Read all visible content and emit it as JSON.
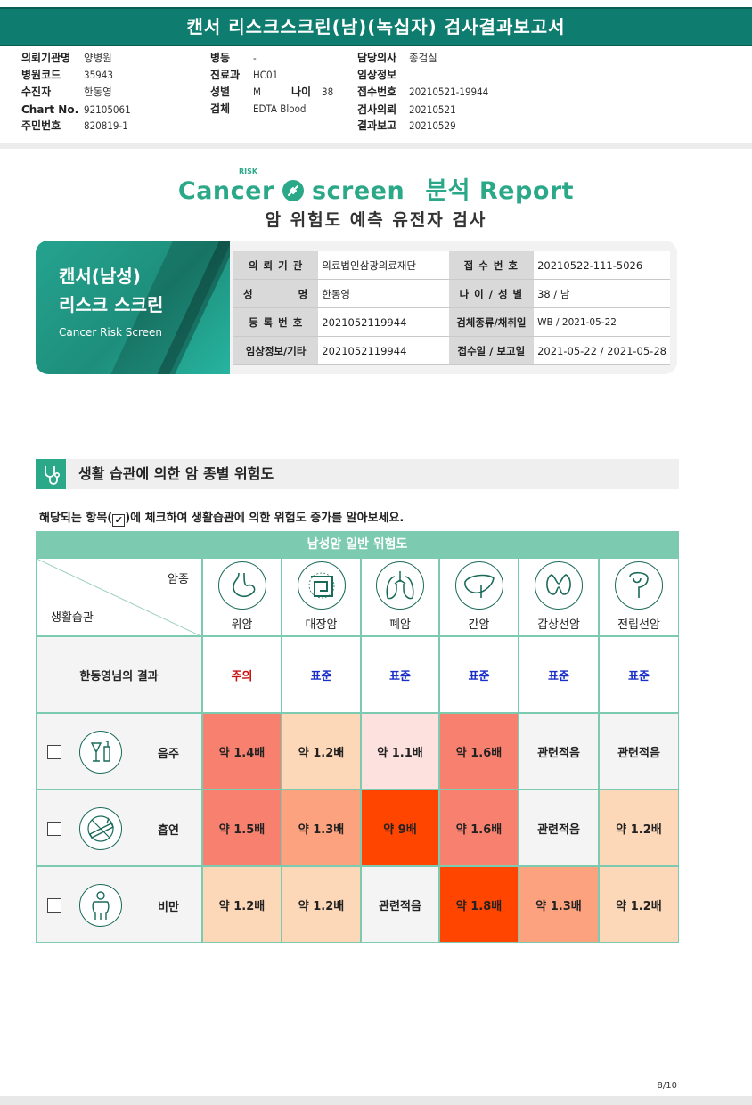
{
  "header": {
    "title": "캔서 리스크스크린(남)(녹십자) 검사결과보고서"
  },
  "meta": {
    "col1": [
      {
        "label": "의뢰기관명",
        "value": "양병원"
      },
      {
        "label": "병원코드",
        "value": "35943"
      },
      {
        "label": "수진자",
        "value": "한동영"
      },
      {
        "label": "Chart No.",
        "value": "92105061"
      },
      {
        "label": "주민번호",
        "value": "820819-1"
      }
    ],
    "col2": [
      {
        "label": "병동",
        "value": "-"
      },
      {
        "label": "진료과",
        "value": "HC01"
      },
      {
        "label": "성별",
        "value": "M"
      },
      {
        "label": "검체",
        "value": "EDTA Blood"
      }
    ],
    "age": {
      "label": "나이",
      "value": "38"
    },
    "col3": [
      {
        "label": "담당의사",
        "value": "종검실"
      },
      {
        "label": "임상정보",
        "value": ""
      },
      {
        "label": "접수번호",
        "value": "20210521-19944"
      },
      {
        "label": "검사의뢰",
        "value": "20210521"
      },
      {
        "label": "결과보고",
        "value": "20210529"
      }
    ]
  },
  "brand": {
    "text_left": "Cancer",
    "text_right": "screen",
    "risk": "RISK",
    "report": "분석 Report",
    "subtitle": "암 위험도 예측 유전자 검사"
  },
  "card": {
    "title1": "캔서(남성)",
    "title2": "리스크 스크린",
    "en": "Cancer Risk Screen"
  },
  "info": [
    [
      {
        "label": "의 뢰 기 관",
        "value": "의료법인삼광의료재단"
      },
      {
        "label": "접 수 번 호",
        "value": "20210522-111-5026"
      }
    ],
    [
      {
        "label": "성          명",
        "value": "한동영"
      },
      {
        "label": "나 이 / 성 별",
        "value": "38 / 남"
      }
    ],
    [
      {
        "label": "등 록 번 호",
        "value": "2021052119944"
      },
      {
        "label": "검체종류/채취일",
        "value": "WB / 2021-05-22"
      }
    ],
    [
      {
        "label": "임상정보/기타",
        "value": "2021052119944"
      },
      {
        "label": "접수일 / 보고일",
        "value": "2021-05-22 / 2021-05-28"
      }
    ]
  ],
  "section": {
    "title": "생활 습관에 의한 암 종별 위험도",
    "instruction_pre": "해당되는 항목(",
    "instruction_check": "✔",
    "instruction_post": ")에 체크하여 생활습관에 의한 위험도 증가를 알아보세요."
  },
  "table": {
    "header": "남성암 일반 위험도",
    "corner_top": "암종",
    "corner_bottom": "생활습관",
    "cancers": [
      {
        "name": "위암",
        "icon": "stomach-icon"
      },
      {
        "name": "대장암",
        "icon": "colon-icon"
      },
      {
        "name": "폐암",
        "icon": "lungs-icon"
      },
      {
        "name": "간암",
        "icon": "liver-icon"
      },
      {
        "name": "갑상선암",
        "icon": "thyroid-icon"
      },
      {
        "name": "전립선암",
        "icon": "prostate-icon"
      }
    ],
    "result_label": "한동영님의 결과",
    "results": [
      {
        "text": "주의",
        "color": "#cc1111"
      },
      {
        "text": "표준",
        "color": "#1a2fc9"
      },
      {
        "text": "표준",
        "color": "#1a2fc9"
      },
      {
        "text": "표준",
        "color": "#1a2fc9"
      },
      {
        "text": "표준",
        "color": "#1a2fc9"
      },
      {
        "text": "표준",
        "color": "#1a2fc9"
      }
    ],
    "habits": [
      {
        "label": "음주",
        "icon": "alcohol-icon",
        "cells": [
          {
            "text": "약 1.4배",
            "bg": "#f8806e"
          },
          {
            "text": "약 1.2배",
            "bg": "#fdd8b8"
          },
          {
            "text": "약 1.1배",
            "bg": "#fde1de"
          },
          {
            "text": "약 1.6배",
            "bg": "#f8806e"
          },
          {
            "text": "관련적음",
            "bg": "#f4f4f4"
          },
          {
            "text": "관련적음",
            "bg": "#f4f4f4"
          }
        ]
      },
      {
        "label": "흡연",
        "icon": "smoking-icon",
        "cells": [
          {
            "text": "약 1.5배",
            "bg": "#f8806e"
          },
          {
            "text": "약 1.3배",
            "bg": "#fca27e"
          },
          {
            "text": "약 9배",
            "bg": "#ff4500"
          },
          {
            "text": "약 1.6배",
            "bg": "#f8806e"
          },
          {
            "text": "관련적음",
            "bg": "#f4f4f4"
          },
          {
            "text": "약 1.2배",
            "bg": "#fdd8b8"
          }
        ]
      },
      {
        "label": "비만",
        "icon": "obesity-icon",
        "cells": [
          {
            "text": "약 1.2배",
            "bg": "#fdd8b8"
          },
          {
            "text": "약 1.2배",
            "bg": "#fdd8b8"
          },
          {
            "text": "관련적음",
            "bg": "#f4f4f4"
          },
          {
            "text": "약 1.8배",
            "bg": "#ff4500"
          },
          {
            "text": "약 1.3배",
            "bg": "#fca27e"
          },
          {
            "text": "약 1.2배",
            "bg": "#fdd8b8"
          }
        ]
      }
    ]
  },
  "footer": {
    "page": "8/10"
  }
}
